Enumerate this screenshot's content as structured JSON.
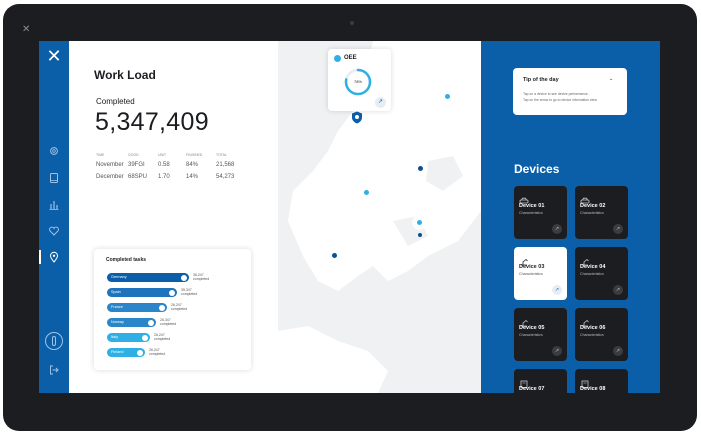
{
  "colors": {
    "accent": "#0b5ea8",
    "accent_light": "#2fb0e5",
    "dark_card": "#1c1d20",
    "map_bg": "#f0f1f3"
  },
  "nav": {
    "logo_glyph": "✕",
    "icons": [
      "gear-icon",
      "tablet-icon",
      "bar-chart-icon",
      "heart-icon",
      "location-pin-icon",
      "power-icon",
      "logout-icon"
    ],
    "active_item": "location-pin-icon"
  },
  "workload": {
    "title": "Work Load",
    "completed_label": "Completed",
    "completed_value": "5,347,409",
    "table": {
      "headers": [
        "TIME",
        "GOOD",
        "UNIT",
        "FINISHED",
        "TOTAL"
      ],
      "rows": [
        [
          "November",
          "39FGI",
          "0.58",
          "84%",
          "21,568"
        ],
        [
          "December",
          "68SPU",
          "1.70",
          "14%",
          "54,273"
        ]
      ]
    }
  },
  "tasks": {
    "title": "Completed tasks",
    "items": [
      {
        "label": "Germany",
        "value": "36,247",
        "sub": "completed",
        "fraction": 1.0,
        "color": "#0b5ea8"
      },
      {
        "label": "Spain",
        "value": "35,347",
        "sub": "completed",
        "fraction": 0.85,
        "color": "#1d74bd"
      },
      {
        "label": "France",
        "value": "26,247",
        "sub": "completed",
        "fraction": 0.73,
        "color": "#2a86c9"
      },
      {
        "label": "Norway",
        "value": "26,347",
        "sub": "completed",
        "fraction": 0.6,
        "color": "#2a86c9"
      },
      {
        "label": "Italy",
        "value": "26,247",
        "sub": "completed",
        "fraction": 0.53,
        "color": "#2fb0e5"
      },
      {
        "label": "Finland",
        "value": "26,247",
        "sub": "completed",
        "fraction": 0.46,
        "color": "#2fb0e5"
      }
    ]
  },
  "oee": {
    "title": "OEE",
    "value": "78%",
    "progress": 0.78,
    "action_icon": "arrow-up-right-icon"
  },
  "map": {
    "pins": [
      "dark",
      "light",
      "dark",
      "light",
      "dark",
      "light"
    ]
  },
  "tip": {
    "title": "Tip of the day",
    "chevron": "⌄",
    "lines": [
      "Tap on a device to see device performance.",
      "Tap on the arrow to go to device information view."
    ]
  },
  "devices": {
    "title": "Devices",
    "items": [
      {
        "name": "Device 01",
        "sub": "Characteristics",
        "icon": "car-icon",
        "active": false
      },
      {
        "name": "Device 02",
        "sub": "Characteristics",
        "icon": "car-icon",
        "active": false
      },
      {
        "name": "Device 03",
        "sub": "Characteristics",
        "icon": "robot-arm-icon",
        "active": true
      },
      {
        "name": "Device 04",
        "sub": "Characteristics",
        "icon": "robot-arm-icon",
        "active": false
      },
      {
        "name": "Device 05",
        "sub": "Characteristics",
        "icon": "robot-arm-icon",
        "active": false
      },
      {
        "name": "Device 06",
        "sub": "Characteristics",
        "icon": "robot-arm-icon",
        "active": false
      },
      {
        "name": "Device 07",
        "sub": "Characteristics",
        "icon": "machine-icon",
        "active": false
      },
      {
        "name": "Device 08",
        "sub": "Characteristics",
        "icon": "machine-icon",
        "active": false
      }
    ],
    "action_glyph": "↗"
  }
}
